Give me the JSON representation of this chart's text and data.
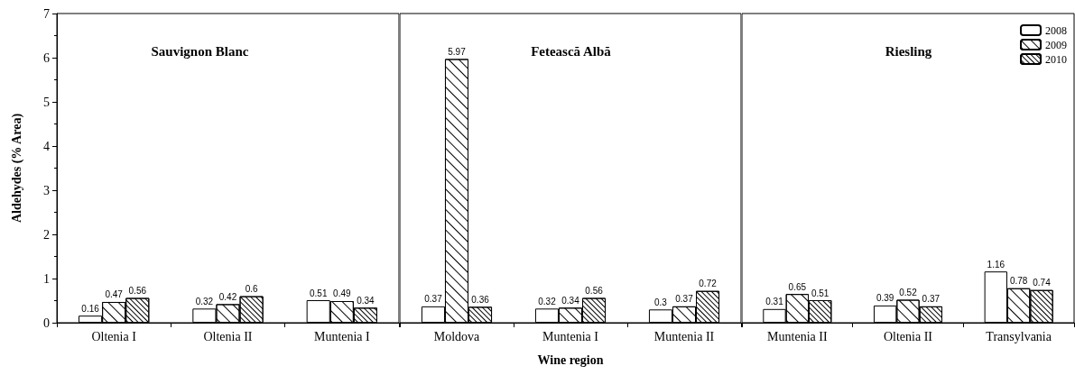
{
  "chart_data": [
    {
      "type": "bar",
      "title": "Sauvignon Blanc",
      "ylabel": "Aldehydes (% Area)",
      "categories": [
        "Oltenia I",
        "Oltenia II",
        "Muntenia I"
      ],
      "ylim": [
        0,
        7
      ],
      "yticks": [
        0,
        1,
        2,
        3,
        4,
        5,
        6,
        7
      ],
      "data_labels": true,
      "grid": false,
      "legend": false,
      "series": [
        {
          "color": "#ffffff",
          "values": [
            0.16,
            0.32,
            0.51
          ]
        },
        {
          "color": "#ffffff",
          "values": [
            0.47,
            0.42,
            0.49
          ]
        },
        {
          "color": "#ffffff",
          "values": [
            0.56,
            0.6,
            0.34
          ]
        }
      ]
    },
    {
      "type": "bar",
      "title": "Fetească Albă",
      "xlabel": "Wine region",
      "categories": [
        "Moldova",
        "Muntenia I",
        "Muntenia II"
      ],
      "ylim": [
        0,
        7
      ],
      "yticks": [
        0,
        1,
        2,
        3,
        4,
        5,
        6,
        7
      ],
      "tick_labels": "x",
      "data_labels": true,
      "grid": false,
      "legend": false,
      "series": [
        {
          "color": "#ffffff",
          "values": [
            0.37,
            0.32,
            0.3
          ]
        },
        {
          "color": "#ffffff",
          "values": [
            5.97,
            0.34,
            0.37
          ]
        },
        {
          "color": "#ffffff",
          "values": [
            0.36,
            0.56,
            0.72
          ]
        }
      ]
    },
    {
      "type": "bar",
      "title": "Riesling",
      "categories": [
        "Muntenia II",
        "Oltenia II",
        "Transylvania"
      ],
      "ylim": [
        0,
        7
      ],
      "yticks": [
        0,
        1,
        2,
        3,
        4,
        5,
        6,
        7
      ],
      "tick_labels": "x",
      "data_labels": true,
      "grid": false,
      "legend": "top right",
      "series": [
        {
          "name": "2008",
          "color": "#ffffff",
          "values": [
            0.31,
            0.39,
            1.16
          ]
        },
        {
          "name": "2009",
          "color": "#ffffff",
          "values": [
            0.65,
            0.52,
            0.78
          ]
        },
        {
          "name": "2010",
          "color": "#ffffff",
          "values": [
            0.51,
            0.37,
            0.74
          ]
        }
      ]
    }
  ]
}
